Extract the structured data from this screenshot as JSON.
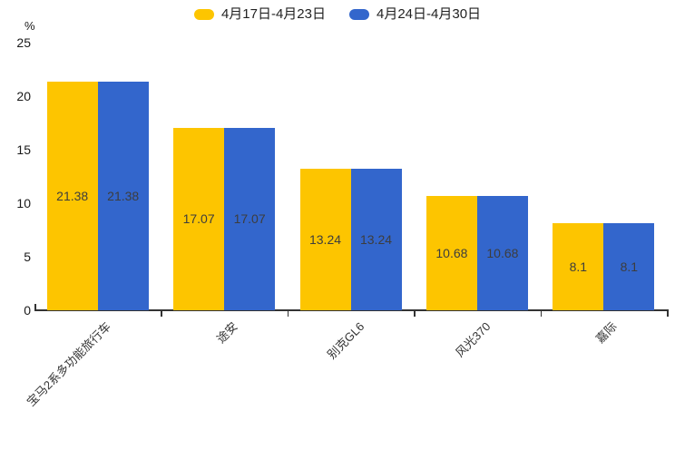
{
  "chart_data": {
    "type": "bar",
    "title": "",
    "categories": [
      "宝马2系多功能旅行车",
      "途安",
      "别克GL6",
      "风光370",
      "嘉际"
    ],
    "series": [
      {
        "name": "4月17日-4月23日",
        "color": "#fdc500",
        "values": [
          21.38,
          17.07,
          13.24,
          10.68,
          8.1
        ]
      },
      {
        "name": "4月24日-4月30日",
        "color": "#3366cc",
        "values": [
          21.38,
          17.07,
          13.24,
          10.68,
          8.1
        ]
      }
    ],
    "value_labels": [
      "21.38",
      "17.07",
      "13.24",
      "10.68",
      "8.1"
    ],
    "ylabel": "%",
    "ylim": [
      0,
      25
    ],
    "yticks": [
      0,
      5,
      10,
      15,
      20,
      25
    ],
    "grid": false,
    "legend_position": "top",
    "background": "#ffffff",
    "axis_color": "#333333"
  }
}
